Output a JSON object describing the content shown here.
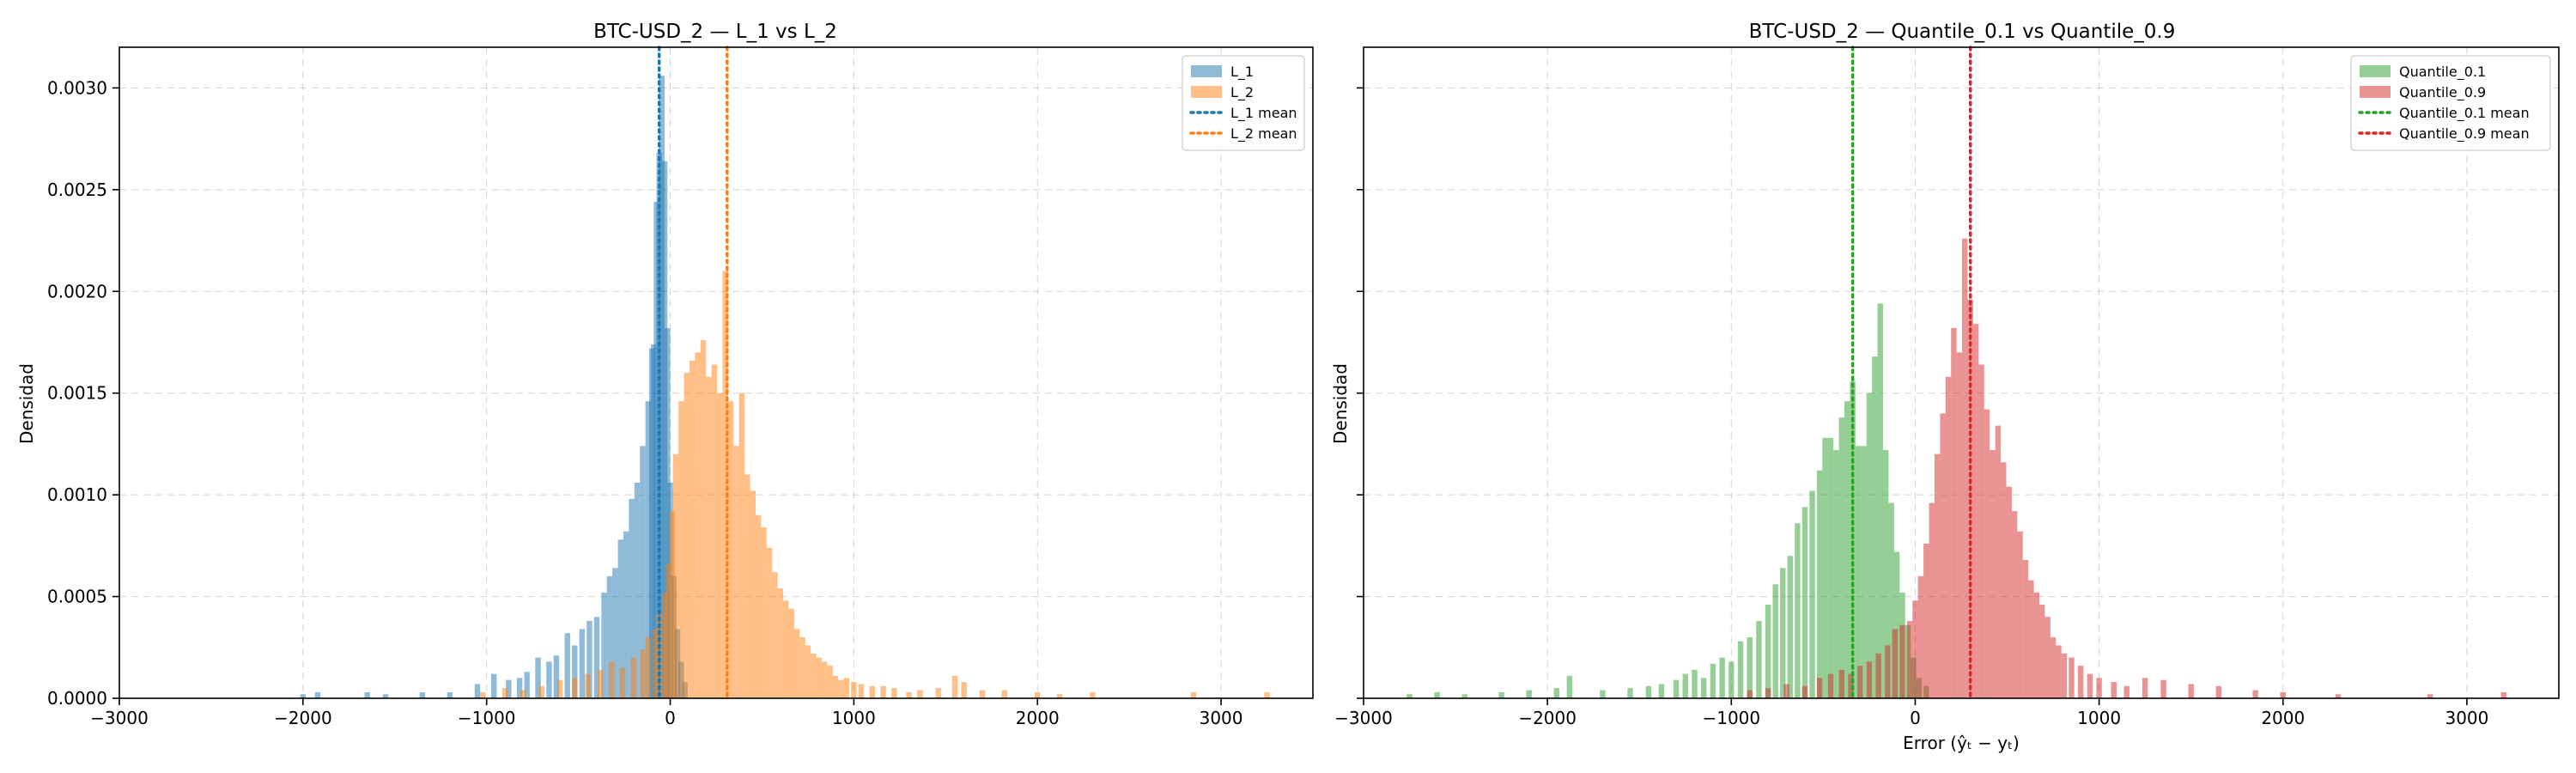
{
  "figure": {
    "ylabel": "Densidad",
    "xlabel_right": "Error (ŷₜ − yₜ)",
    "x_ticks": [
      -3000,
      -2000,
      -1000,
      0,
      1000,
      2000,
      3000
    ],
    "y_ticks": [
      "0.0000",
      "0.0005",
      "0.0010",
      "0.0015",
      "0.0020",
      "0.0025",
      "0.0030"
    ]
  },
  "chart_data": [
    {
      "type": "bar",
      "title": "BTC-USD_2 — L_1 vs L_2",
      "xlabel": "",
      "ylabel": "Densidad",
      "xlim": [
        -3000,
        3500
      ],
      "ylim": [
        0,
        0.0032
      ],
      "grid": true,
      "legend_position": "top-right",
      "series": [
        {
          "name": "L_1",
          "color": "#1f77b4",
          "alpha": 0.5,
          "bin_width": 30,
          "points": [
            [
              -2000,
              2e-05
            ],
            [
              -1920,
              3e-05
            ],
            [
              -1650,
              3e-05
            ],
            [
              -1550,
              2e-05
            ],
            [
              -1350,
              3e-05
            ],
            [
              -1200,
              3e-05
            ],
            [
              -1050,
              7e-05
            ],
            [
              -960,
              0.00012
            ],
            [
              -880,
              9e-05
            ],
            [
              -820,
              0.0001
            ],
            [
              -780,
              0.00013
            ],
            [
              -720,
              0.0002
            ],
            [
              -660,
              0.00018
            ],
            [
              -620,
              0.00021
            ],
            [
              -560,
              0.00032
            ],
            [
              -520,
              0.00026
            ],
            [
              -480,
              0.00034
            ],
            [
              -440,
              0.00038
            ],
            [
              -400,
              0.0004
            ],
            [
              -360,
              0.00052
            ],
            [
              -330,
              0.0006
            ],
            [
              -300,
              0.00064
            ],
            [
              -270,
              0.00078
            ],
            [
              -240,
              0.00082
            ],
            [
              -210,
              0.00098
            ],
            [
              -180,
              0.00106
            ],
            [
              -150,
              0.00124
            ],
            [
              -120,
              0.00146
            ],
            [
              -100,
              0.00172
            ],
            [
              -90,
              0.00174
            ],
            [
              -75,
              0.00244
            ],
            [
              -60,
              0.00268
            ],
            [
              -45,
              0.00306
            ],
            [
              -30,
              0.00264
            ],
            [
              -15,
              0.00182
            ],
            [
              0,
              0.00106
            ],
            [
              20,
              0.0006
            ],
            [
              40,
              0.00034
            ],
            [
              60,
              0.00018
            ],
            [
              80,
              8e-05
            ]
          ]
        },
        {
          "name": "L_2",
          "color": "#ff7f0e",
          "alpha": 0.5,
          "bin_width": 30,
          "points": [
            [
              -1020,
              3e-05
            ],
            [
              -900,
              5e-05
            ],
            [
              -800,
              4e-05
            ],
            [
              -700,
              6e-05
            ],
            [
              -600,
              9e-05
            ],
            [
              -520,
              0.0001
            ],
            [
              -450,
              0.00012
            ],
            [
              -380,
              0.00014
            ],
            [
              -320,
              0.00018
            ],
            [
              -260,
              0.00015
            ],
            [
              -200,
              0.0002
            ],
            [
              -150,
              0.00024
            ],
            [
              -120,
              0.0003
            ],
            [
              -80,
              0.00034
            ],
            [
              -60,
              0.00042
            ],
            [
              -30,
              0.00052
            ],
            [
              -10,
              0.00066
            ],
            [
              10,
              0.00092
            ],
            [
              30,
              0.0012
            ],
            [
              60,
              0.00146
            ],
            [
              90,
              0.0016
            ],
            [
              120,
              0.00166
            ],
            [
              150,
              0.0017
            ],
            [
              180,
              0.00176
            ],
            [
              210,
              0.00158
            ],
            [
              240,
              0.00164
            ],
            [
              270,
              0.0015
            ],
            [
              300,
              0.0021
            ],
            [
              330,
              0.00146
            ],
            [
              360,
              0.00124
            ],
            [
              390,
              0.0015
            ],
            [
              420,
              0.0011
            ],
            [
              450,
              0.00102
            ],
            [
              480,
              0.0009
            ],
            [
              510,
              0.00084
            ],
            [
              540,
              0.00074
            ],
            [
              570,
              0.00062
            ],
            [
              600,
              0.00054
            ],
            [
              630,
              0.00048
            ],
            [
              660,
              0.00044
            ],
            [
              690,
              0.00034
            ],
            [
              720,
              0.0003
            ],
            [
              750,
              0.00026
            ],
            [
              780,
              0.00022
            ],
            [
              810,
              0.0002
            ],
            [
              840,
              0.00018
            ],
            [
              870,
              0.00016
            ],
            [
              900,
              0.00011
            ],
            [
              930,
              9e-05
            ],
            [
              960,
              0.0001
            ],
            [
              1000,
              8e-05
            ],
            [
              1040,
              7e-05
            ],
            [
              1100,
              6e-05
            ],
            [
              1160,
              6e-05
            ],
            [
              1220,
              5e-05
            ],
            [
              1300,
              3e-05
            ],
            [
              1360,
              4e-05
            ],
            [
              1460,
              5e-05
            ],
            [
              1550,
              0.00011
            ],
            [
              1600,
              8e-05
            ],
            [
              1700,
              4e-05
            ],
            [
              1820,
              4e-05
            ],
            [
              2000,
              3e-05
            ],
            [
              2120,
              2e-05
            ],
            [
              2300,
              3e-05
            ],
            [
              2850,
              3e-05
            ],
            [
              3250,
              3e-05
            ]
          ]
        }
      ],
      "mean_lines": [
        {
          "name": "L_1 mean",
          "x": -60,
          "color": "#1f77b4"
        },
        {
          "name": "L_2 mean",
          "x": 310,
          "color": "#ff7f0e"
        }
      ]
    },
    {
      "type": "bar",
      "title": "BTC-USD_2 — Quantile_0.1 vs Quantile_0.9",
      "xlabel": "Error (ŷₜ − yₜ)",
      "ylabel": "Densidad",
      "xlim": [
        -3000,
        3500
      ],
      "ylim": [
        0,
        0.0032
      ],
      "grid": true,
      "legend_position": "top-right",
      "series": [
        {
          "name": "Quantile_0.1",
          "color": "#2ca02c",
          "alpha": 0.5,
          "bin_width": 30,
          "points": [
            [
              -2750,
              2e-05
            ],
            [
              -2600,
              3e-05
            ],
            [
              -2450,
              2e-05
            ],
            [
              -2250,
              3e-05
            ],
            [
              -2100,
              4e-05
            ],
            [
              -1950,
              5e-05
            ],
            [
              -1880,
              0.00011
            ],
            [
              -1700,
              4e-05
            ],
            [
              -1550,
              5e-05
            ],
            [
              -1450,
              6e-05
            ],
            [
              -1380,
              7e-05
            ],
            [
              -1300,
              9e-05
            ],
            [
              -1250,
              0.00012
            ],
            [
              -1200,
              0.00014
            ],
            [
              -1150,
              0.0001
            ],
            [
              -1100,
              0.00017
            ],
            [
              -1050,
              0.0002
            ],
            [
              -1000,
              0.00018
            ],
            [
              -950,
              0.00028
            ],
            [
              -900,
              0.0003
            ],
            [
              -850,
              0.00038
            ],
            [
              -800,
              0.00046
            ],
            [
              -760,
              0.00056
            ],
            [
              -720,
              0.00064
            ],
            [
              -680,
              0.0007
            ],
            [
              -640,
              0.00086
            ],
            [
              -600,
              0.00094
            ],
            [
              -560,
              0.00102
            ],
            [
              -520,
              0.00112
            ],
            [
              -490,
              0.00128
            ],
            [
              -460,
              0.00128
            ],
            [
              -430,
              0.00122
            ],
            [
              -400,
              0.00138
            ],
            [
              -370,
              0.00146
            ],
            [
              -340,
              0.00156
            ],
            [
              -310,
              0.00124
            ],
            [
              -280,
              0.00124
            ],
            [
              -250,
              0.0015
            ],
            [
              -220,
              0.00168
            ],
            [
              -190,
              0.00194
            ],
            [
              -160,
              0.00122
            ],
            [
              -130,
              0.00096
            ],
            [
              -100,
              0.00072
            ],
            [
              -70,
              0.00052
            ],
            [
              -40,
              0.00036
            ],
            [
              -10,
              0.0002
            ],
            [
              20,
              0.0001
            ],
            [
              60,
              6e-05
            ]
          ]
        },
        {
          "name": "Quantile_0.9",
          "color": "#d62728",
          "alpha": 0.5,
          "bin_width": 30,
          "points": [
            [
              -900,
              4e-05
            ],
            [
              -800,
              5e-05
            ],
            [
              -700,
              7e-05
            ],
            [
              -600,
              6e-05
            ],
            [
              -520,
              0.0001
            ],
            [
              -460,
              0.00012
            ],
            [
              -400,
              0.00014
            ],
            [
              -350,
              0.00012
            ],
            [
              -300,
              0.00016
            ],
            [
              -250,
              0.00018
            ],
            [
              -200,
              0.00022
            ],
            [
              -150,
              0.00026
            ],
            [
              -110,
              0.00034
            ],
            [
              -70,
              0.00036
            ],
            [
              -30,
              0.00038
            ],
            [
              0,
              0.00048
            ],
            [
              30,
              0.0006
            ],
            [
              60,
              0.00076
            ],
            [
              90,
              0.00096
            ],
            [
              120,
              0.0012
            ],
            [
              150,
              0.0014
            ],
            [
              180,
              0.00158
            ],
            [
              210,
              0.00182
            ],
            [
              240,
              0.0017
            ],
            [
              270,
              0.00226
            ],
            [
              300,
              0.00196
            ],
            [
              330,
              0.00184
            ],
            [
              360,
              0.00164
            ],
            [
              390,
              0.00142
            ],
            [
              420,
              0.00122
            ],
            [
              450,
              0.00134
            ],
            [
              480,
              0.00116
            ],
            [
              510,
              0.00104
            ],
            [
              540,
              0.00092
            ],
            [
              570,
              0.00082
            ],
            [
              600,
              0.00068
            ],
            [
              630,
              0.00058
            ],
            [
              660,
              0.00052
            ],
            [
              690,
              0.00046
            ],
            [
              720,
              0.0004
            ],
            [
              750,
              0.0003
            ],
            [
              780,
              0.00026
            ],
            [
              810,
              0.00022
            ],
            [
              850,
              0.0002
            ],
            [
              900,
              0.00016
            ],
            [
              950,
              0.00012
            ],
            [
              1000,
              0.0001
            ],
            [
              1080,
              8e-05
            ],
            [
              1150,
              6e-05
            ],
            [
              1250,
              0.0001
            ],
            [
              1350,
              9e-05
            ],
            [
              1500,
              7e-05
            ],
            [
              1650,
              6e-05
            ],
            [
              1850,
              4e-05
            ],
            [
              2000,
              3e-05
            ],
            [
              2300,
              2e-05
            ],
            [
              2800,
              2e-05
            ],
            [
              3200,
              3e-05
            ]
          ]
        }
      ],
      "mean_lines": [
        {
          "name": "Quantile_0.1 mean",
          "x": -340,
          "color": "#2ca02c"
        },
        {
          "name": "Quantile_0.9 mean",
          "x": 300,
          "color": "#d62728"
        }
      ]
    }
  ]
}
